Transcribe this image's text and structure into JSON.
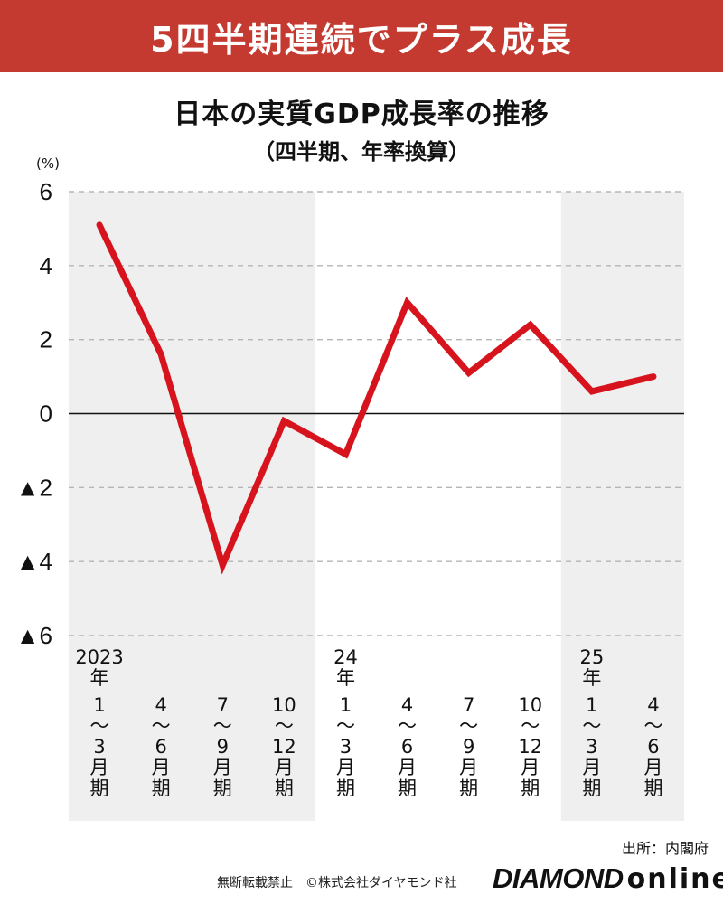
{
  "header": {
    "banner_text": "5四半期連続でプラス成長",
    "banner_color": "#c53a30"
  },
  "chart_data": {
    "type": "line",
    "title": "日本の実質GDP成長率の推移",
    "subtitle": "（四半期、年率換算）",
    "ylabel": "(%)",
    "ylim": [
      -6,
      6
    ],
    "yticks": [
      6,
      4,
      2,
      0,
      -2,
      -4,
      -6
    ],
    "ytick_labels": [
      "6",
      "4",
      "2",
      "0",
      "▲2",
      "▲4",
      "▲6"
    ],
    "grid": true,
    "categories": [
      {
        "year": "2023\n年",
        "label": "1\n〜\n3\n月\n期"
      },
      {
        "year": "",
        "label": "4\n〜\n6\n月\n期"
      },
      {
        "year": "",
        "label": "7\n〜\n9\n月\n期"
      },
      {
        "year": "",
        "label": "10\n〜\n12\n月\n期"
      },
      {
        "year": "24\n年",
        "label": "1\n〜\n3\n月\n期"
      },
      {
        "year": "",
        "label": "4\n〜\n6\n月\n期"
      },
      {
        "year": "",
        "label": "7\n〜\n9\n月\n期"
      },
      {
        "year": "",
        "label": "10\n〜\n12\n月\n期"
      },
      {
        "year": "25\n年",
        "label": "1\n〜\n3\n月\n期"
      },
      {
        "year": "",
        "label": "4\n〜\n6\n月\n期"
      }
    ],
    "series": [
      {
        "values": [
          5.1,
          1.6,
          -4.1,
          -0.2,
          -1.1,
          3.0,
          1.1,
          2.4,
          0.6,
          1.0
        ],
        "color": "#d7141e"
      }
    ],
    "shaded_years": [
      "2023",
      "2025"
    ],
    "shade_color": "#efefef"
  },
  "footer": {
    "source": "出所：内閣府",
    "copyright": "無断転載禁止　©株式会社ダイヤモンド社",
    "logo_main": "DIAMOND",
    "logo_sub": "online"
  }
}
